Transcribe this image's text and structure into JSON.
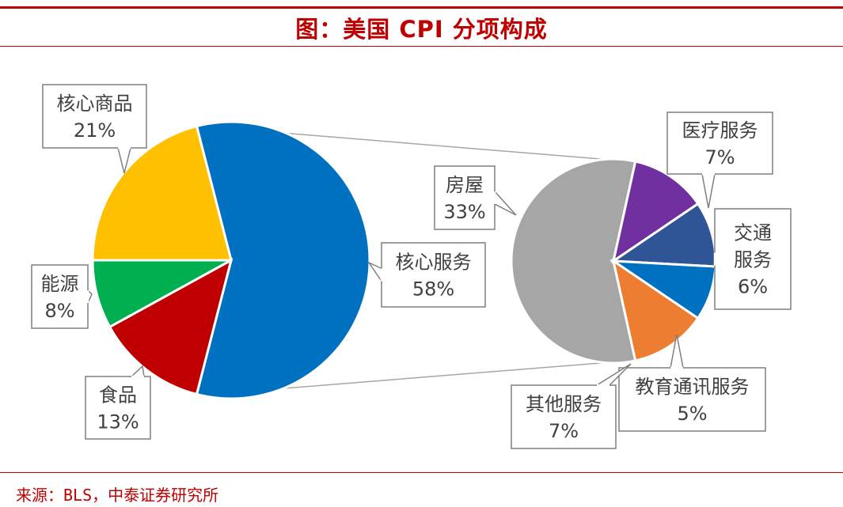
{
  "title": "图：美国 CPI 分项构成",
  "source": "来源：BLS，中泰证券研究所",
  "chart_data": [
    {
      "type": "pie",
      "slices": [
        {
          "line1": "核心服务",
          "line2": "",
          "pct_label": "58%",
          "value": 58,
          "color": "#0070c0"
        },
        {
          "line1": "食品",
          "line2": "",
          "pct_label": "13%",
          "value": 13,
          "color": "#c00000"
        },
        {
          "line1": "能源",
          "line2": "",
          "pct_label": "8%",
          "value": 8,
          "color": "#00b050"
        },
        {
          "line1": "核心商品",
          "line2": "",
          "pct_label": "21%",
          "value": 21,
          "color": "#ffc000"
        }
      ]
    },
    {
      "type": "pie",
      "slices": [
        {
          "line1": "房屋",
          "line2": "",
          "pct_label": "33%",
          "value": 33,
          "color": "#a6a6a6"
        },
        {
          "line1": "医疗服务",
          "line2": "",
          "pct_label": "7%",
          "value": 7,
          "color": "#7030a0"
        },
        {
          "line1": "交通",
          "line2": "服务",
          "pct_label": "6%",
          "value": 6,
          "color": "#2f5597"
        },
        {
          "line1": "教育通讯服务",
          "line2": "",
          "pct_label": "5%",
          "value": 5,
          "color": "#0070c0"
        },
        {
          "line1": "其他服务",
          "line2": "",
          "pct_label": "7%",
          "value": 7,
          "color": "#ed7d31"
        }
      ]
    }
  ]
}
